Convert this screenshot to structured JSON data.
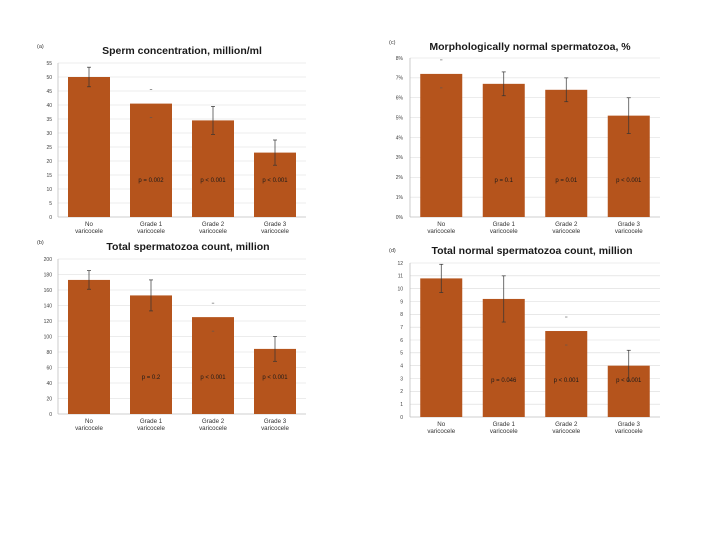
{
  "chart_data": [
    {
      "type": "bar",
      "panel_label": "(a)",
      "title": "Sperm concentration, million/ml",
      "categories": [
        [
          "No",
          "varicocele"
        ],
        [
          "Grade 1",
          "varicocele"
        ],
        [
          "Grade 2",
          "varicocele"
        ],
        [
          "Grade 3",
          "varicocele"
        ]
      ],
      "values": [
        50,
        40.5,
        34.5,
        23
      ],
      "errors": [
        3.5,
        0,
        5,
        4.5
      ],
      "p_values": [
        "",
        "p = 0.002",
        "p < 0.001",
        "p < 0.001"
      ],
      "ylim": [
        0,
        55
      ],
      "yticks": [
        0,
        5,
        10,
        15,
        20,
        25,
        30,
        35,
        40,
        45,
        50,
        55
      ],
      "ytick_labels": [
        "0",
        "5",
        "10",
        "15",
        "20",
        "25",
        "30",
        "35",
        "40",
        "45",
        "50",
        "55"
      ],
      "bar_color": "#b5541c"
    },
    {
      "type": "bar",
      "panel_label": "(c)",
      "title": "Morphologically normal spermatozoa, %",
      "categories": [
        [
          "No",
          "varicocele"
        ],
        [
          "Grade 1",
          "varicocele"
        ],
        [
          "Grade 2",
          "varicocele"
        ],
        [
          "Grade 3",
          "varicocele"
        ]
      ],
      "values": [
        7.2,
        6.7,
        6.4,
        5.1
      ],
      "errors": [
        0,
        0.6,
        0.6,
        0.9
      ],
      "p_values": [
        "",
        "p = 0.1",
        "p = 0.01",
        "p < 0.001"
      ],
      "ylim": [
        0,
        8
      ],
      "yticks": [
        0,
        1,
        2,
        3,
        4,
        5,
        6,
        7,
        8
      ],
      "ytick_labels": [
        "0%",
        "1%",
        "2%",
        "3%",
        "4%",
        "5%",
        "6%",
        "7%",
        "8%"
      ],
      "bar_color": "#b5541c"
    },
    {
      "type": "bar",
      "panel_label": "(b)",
      "title": "Total spermatozoa count, million",
      "categories": [
        [
          "No",
          "varicocele"
        ],
        [
          "Grade 1",
          "varicocele"
        ],
        [
          "Grade 2",
          "varicocele"
        ],
        [
          "Grade 3",
          "varicocele"
        ]
      ],
      "values": [
        173,
        153,
        125,
        84
      ],
      "errors": [
        12,
        20,
        0,
        16
      ],
      "p_values": [
        "",
        "p = 0.2",
        "p < 0.001",
        "p < 0.001"
      ],
      "ylim": [
        0,
        200
      ],
      "yticks": [
        0,
        20,
        40,
        60,
        80,
        100,
        120,
        140,
        160,
        180,
        200
      ],
      "ytick_labels": [
        "0",
        "20",
        "40",
        "60",
        "80",
        "100",
        "120",
        "140",
        "160",
        "180",
        "200"
      ],
      "bar_color": "#b5541c"
    },
    {
      "type": "bar",
      "panel_label": "(d)",
      "title": "Total normal spermatozoa count, million",
      "categories": [
        [
          "No",
          "varicocele"
        ],
        [
          "Grade 1",
          "varicocele"
        ],
        [
          "Grade 2",
          "varicocele"
        ],
        [
          "Grade 3",
          "varicocele"
        ]
      ],
      "values": [
        10.8,
        9.2,
        6.7,
        4
      ],
      "errors": [
        1.1,
        1.8,
        0,
        1.2
      ],
      "p_values": [
        "",
        "p = 0.046",
        "p < 0.001",
        "p < 0.001"
      ],
      "ylim": [
        0,
        12
      ],
      "yticks": [
        0,
        1,
        2,
        3,
        4,
        5,
        6,
        7,
        8,
        9,
        10,
        11,
        12
      ],
      "ytick_labels": [
        "0",
        "1",
        "2",
        "3",
        "4",
        "5",
        "6",
        "7",
        "8",
        "9",
        "10",
        "11",
        "12"
      ],
      "bar_color": "#b5541c"
    }
  ]
}
